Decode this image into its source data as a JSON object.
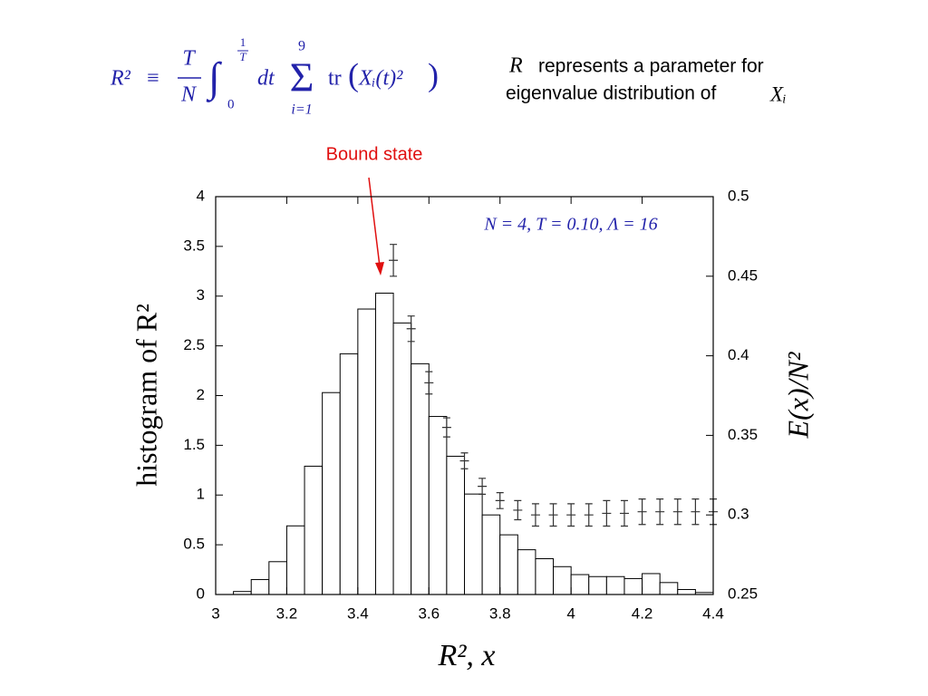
{
  "formula": {
    "parts": [
      "R²",
      "≡",
      "T",
      "N",
      "∫",
      "1",
      "T",
      "0",
      "dt",
      "Σ",
      "9",
      "i=1",
      "tr",
      "(",
      "Xᵢ(t)²",
      ")"
    ]
  },
  "description": [
    "R",
    "represents a parameter for",
    "eigenvalue distribution of",
    "Xᵢ"
  ],
  "chart_data": {
    "type": "histogram",
    "annotation": "Bound state",
    "subtitle": "N = 4, T = 0.10, Λ = 16",
    "xlabel": "R², x",
    "ylabel": "histogram of R²",
    "y2label": "E(x)/N²",
    "bins": [
      3.05,
      3.1,
      3.15,
      3.2,
      3.25,
      3.3,
      3.35,
      3.4,
      3.45,
      3.5,
      3.55,
      3.6,
      3.65,
      3.7,
      3.75,
      3.8,
      3.85,
      3.9,
      3.95,
      4.0,
      4.05,
      4.1,
      4.15,
      4.2,
      4.25,
      4.3,
      4.35,
      4.4
    ],
    "counts": [
      0.03,
      0.15,
      0.33,
      0.69,
      1.29,
      2.03,
      2.42,
      2.87,
      3.03,
      2.73,
      2.32,
      1.79,
      1.39,
      1.01,
      0.8,
      0.6,
      0.45,
      0.36,
      0.28,
      0.2,
      0.18,
      0.18,
      0.16,
      0.21,
      0.12,
      0.05,
      0.02
    ],
    "color": "#ffffff",
    "edgecolor": "#000000",
    "series": [
      {
        "type": "errorbar",
        "axis": "y2",
        "color": "#333333",
        "x": [
          3.5,
          3.55,
          3.6,
          3.65,
          3.7,
          3.75,
          3.8,
          3.85,
          3.9,
          3.95,
          4.0,
          4.05,
          4.1,
          4.15,
          4.2,
          4.25,
          4.3,
          4.35,
          4.4
        ],
        "values": [
          0.46,
          0.417,
          0.383,
          0.355,
          0.334,
          0.318,
          0.309,
          0.303,
          0.3,
          0.3,
          0.3,
          0.3,
          0.301,
          0.301,
          0.302,
          0.302,
          0.302,
          0.302,
          0.302
        ],
        "errors": [
          0.01,
          0.008,
          0.007,
          0.006,
          0.005,
          0.005,
          0.005,
          0.006,
          0.007,
          0.007,
          0.007,
          0.007,
          0.008,
          0.008,
          0.008,
          0.008,
          0.008,
          0.008,
          0.008
        ]
      }
    ],
    "xlim": [
      3,
      4.4
    ],
    "xticks": [
      3,
      3.2,
      3.4,
      3.6,
      3.8,
      4,
      4.2,
      4.4
    ],
    "ylim": [
      0,
      4
    ],
    "yticks": [
      0,
      0.5,
      1,
      1.5,
      2,
      2.5,
      3,
      3.5,
      4
    ],
    "y2lim": [
      0.25,
      0.5
    ],
    "y2ticks": [
      0.25,
      0.3,
      0.35,
      0.4,
      0.45,
      0.5
    ]
  }
}
